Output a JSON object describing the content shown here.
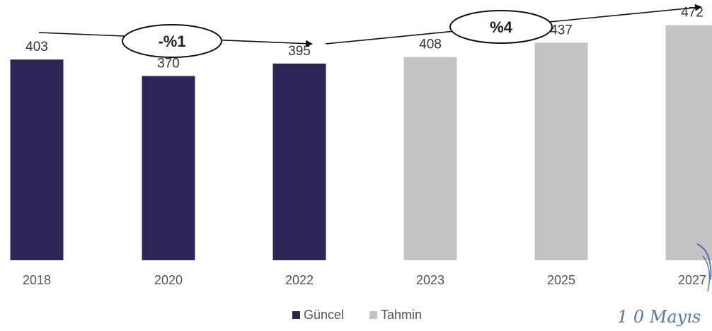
{
  "chart_data": {
    "type": "bar",
    "categories": [
      "2018",
      "2020",
      "2022",
      "2023",
      "2025",
      "2027"
    ],
    "values": [
      403,
      370,
      395,
      408,
      437,
      472
    ],
    "value_labels": [
      "403",
      "370",
      "395",
      "408",
      "437",
      "472"
    ],
    "bar_kind": [
      "Güncel",
      "Güncel",
      "Güncel",
      "Tahmin",
      "Tahmin",
      "Tahmin"
    ],
    "ylim": [
      0,
      480
    ],
    "grid": false,
    "title": "",
    "xlabel": "",
    "ylabel": "",
    "legend": {
      "placement": "bottom-center",
      "items": [
        {
          "name": "Güncel",
          "color": "#2b2657"
        },
        {
          "name": "Tahmin",
          "color": "#c4c4c4"
        }
      ]
    },
    "annotations": [
      {
        "text": "-%1",
        "from_category": "2018",
        "to_category": "2022"
      },
      {
        "text": "%4",
        "from_category": "2022",
        "to_category": "2027"
      }
    ]
  },
  "stamp": {
    "text": "1 0 Mayıs"
  },
  "colors": {
    "actual": "#2b2657",
    "forecast": "#c4c4c4",
    "arrow": "#111111",
    "stamp": "#3a5fa8"
  }
}
